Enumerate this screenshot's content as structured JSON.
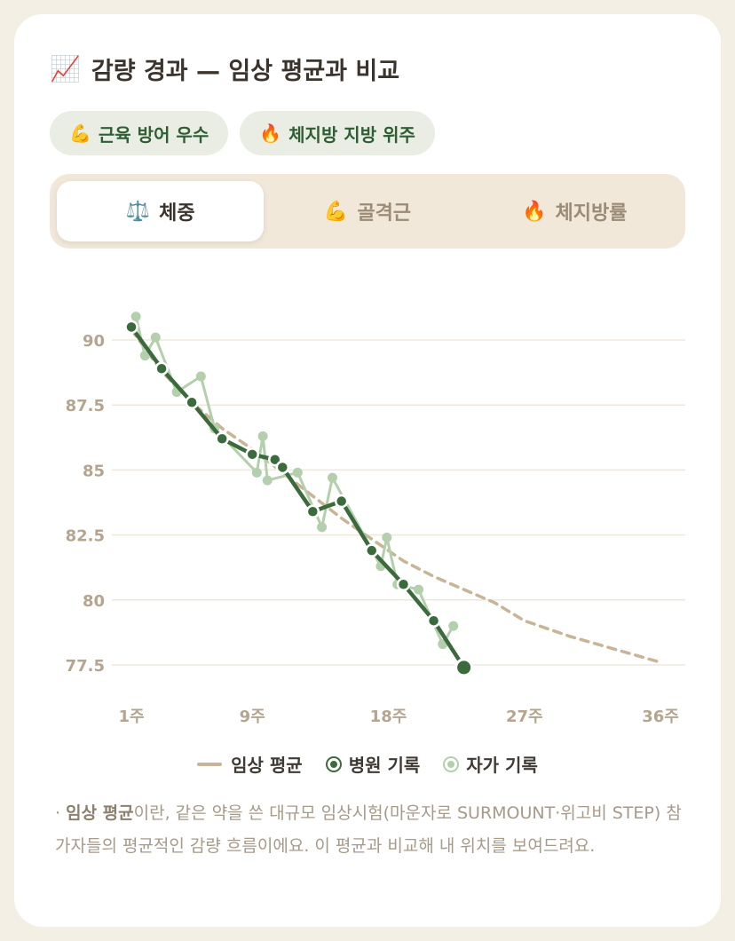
{
  "title": {
    "emoji": "📈",
    "text": "감량 경과 — 임상 평균과 비교"
  },
  "badges": [
    {
      "emoji": "💪",
      "label": "근육 방어 우수"
    },
    {
      "emoji": "🔥",
      "label": "체지방 지방 위주"
    }
  ],
  "tabs": [
    {
      "emoji": "⚖️",
      "label": "체중",
      "active": true
    },
    {
      "emoji": "💪",
      "label": "골격근",
      "active": false
    },
    {
      "emoji": "🔥",
      "label": "체지방률",
      "active": false
    }
  ],
  "chart_data": {
    "type": "line",
    "title": "",
    "xlabel": "",
    "ylabel": "",
    "x_ticks": [
      "1주",
      "9주",
      "18주",
      "27주",
      "36주"
    ],
    "x_tick_values": [
      1,
      9,
      18,
      27,
      36
    ],
    "y_ticks": [
      "90",
      "87.5",
      "85",
      "82.5",
      "80",
      "77.5"
    ],
    "y_tick_values": [
      90,
      87.5,
      85,
      82.5,
      80,
      77.5
    ],
    "xlim": [
      1,
      36
    ],
    "ylim": [
      77.5,
      90
    ],
    "grid": true,
    "legend_position": "bottom",
    "series": [
      {
        "name": "임상 평균",
        "style": "dashed",
        "color": "#c8b497",
        "points": [
          [
            1,
            90.4
          ],
          [
            3,
            88.8
          ],
          [
            5,
            87.6
          ],
          [
            7,
            86.6
          ],
          [
            9,
            85.8
          ],
          [
            11,
            84.9
          ],
          [
            13,
            84.0
          ],
          [
            15,
            83.1
          ],
          [
            17,
            82.3
          ],
          [
            19,
            81.5
          ],
          [
            21,
            80.9
          ],
          [
            23,
            80.4
          ],
          [
            25,
            79.9
          ],
          [
            27,
            79.2
          ],
          [
            30,
            78.6
          ],
          [
            33,
            78.1
          ],
          [
            36,
            77.6
          ]
        ]
      },
      {
        "name": "병원 기록",
        "color": "#3b6a3c",
        "points": [
          [
            1,
            90.5
          ],
          [
            3,
            88.9
          ],
          [
            5,
            87.6
          ],
          [
            7,
            86.2
          ],
          [
            9,
            85.6
          ],
          [
            10.5,
            85.4
          ],
          [
            11,
            85.1
          ],
          [
            13,
            83.4
          ],
          [
            14.9,
            83.8
          ],
          [
            16.9,
            81.9
          ],
          [
            19,
            80.6
          ],
          [
            21,
            79.2
          ],
          [
            23,
            77.4
          ]
        ]
      },
      {
        "name": "자가 기록",
        "color": "#b3cfac",
        "points": [
          [
            1.3,
            90.9
          ],
          [
            1.9,
            89.4
          ],
          [
            2.6,
            90.1
          ],
          [
            4,
            88.0
          ],
          [
            5.6,
            88.6
          ],
          [
            6.5,
            86.6
          ],
          [
            9.3,
            84.9
          ],
          [
            9.7,
            86.3
          ],
          [
            10,
            84.6
          ],
          [
            12,
            84.9
          ],
          [
            13.6,
            82.8
          ],
          [
            14.3,
            84.7
          ],
          [
            17.5,
            81.3
          ],
          [
            17.9,
            82.4
          ],
          [
            18.6,
            80.6
          ],
          [
            20,
            80.4
          ],
          [
            21.6,
            78.3
          ],
          [
            22.3,
            79.0
          ]
        ]
      }
    ]
  },
  "legend": [
    {
      "key": "avg",
      "label": "임상 평균"
    },
    {
      "key": "hosp",
      "label": "병원 기록"
    },
    {
      "key": "self",
      "label": "자가 기록"
    }
  ],
  "note": {
    "prefix": "· ",
    "bold": "임상 평균",
    "text": "이란, 같은 약을 쓴 대규모 임상시험(마운자로 SURMOUNT·위고비 STEP) 참가자들의 평균적인 감량 흐름이에요. 이 평균과 비교해 내 위치를 보여드려요."
  }
}
